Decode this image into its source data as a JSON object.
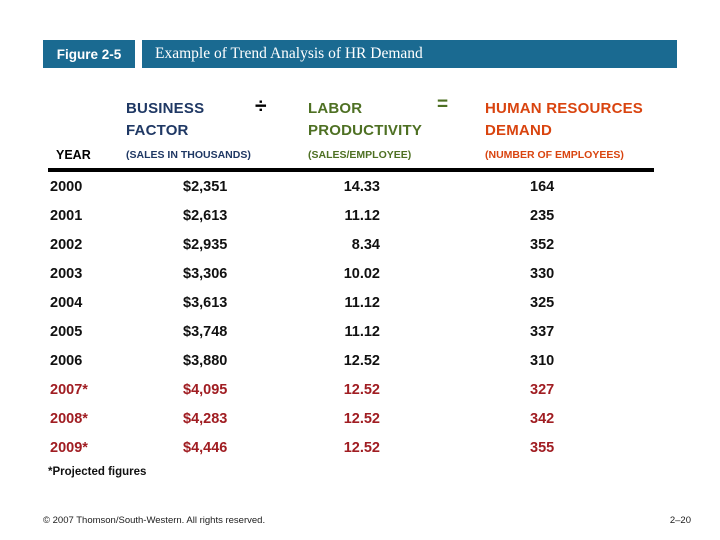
{
  "header": {
    "figure_label": "Figure 2-5",
    "title": "Example of Trend Analysis of HR Demand"
  },
  "table": {
    "year_header": "YEAR",
    "divide_symbol": "÷",
    "equals_symbol": "=",
    "business": {
      "line1": "BUSINESS",
      "line2": "FACTOR",
      "subtitle": "(SALES IN THOUSANDS)"
    },
    "productivity": {
      "line1": "LABOR",
      "line2": "PRODUCTIVITY",
      "subtitle": "(SALES/EMPLOYEE)"
    },
    "demand": {
      "line1": "HUMAN RESOURCES",
      "line2": "DEMAND",
      "subtitle": "(NUMBER OF EMPLOYEES)"
    },
    "rows": [
      {
        "year": "2000",
        "business": "$2,351",
        "productivity": "14.33",
        "demand": "164",
        "projected": false
      },
      {
        "year": "2001",
        "business": "$2,613",
        "productivity": "11.12",
        "demand": "235",
        "projected": false
      },
      {
        "year": "2002",
        "business": "$2,935",
        "productivity": "8.34",
        "demand": "352",
        "projected": false
      },
      {
        "year": "2003",
        "business": "$3,306",
        "productivity": "10.02",
        "demand": "330",
        "projected": false
      },
      {
        "year": "2004",
        "business": "$3,613",
        "productivity": "11.12",
        "demand": "325",
        "projected": false
      },
      {
        "year": "2005",
        "business": "$3,748",
        "productivity": "11.12",
        "demand": "337",
        "projected": false
      },
      {
        "year": "2006",
        "business": "$3,880",
        "productivity": "12.52",
        "demand": "310",
        "projected": false
      },
      {
        "year": "2007*",
        "business": "$4,095",
        "productivity": "12.52",
        "demand": "327",
        "projected": true
      },
      {
        "year": "2008*",
        "business": "$4,283",
        "productivity": "12.52",
        "demand": "342",
        "projected": true
      },
      {
        "year": "2009*",
        "business": "$4,446",
        "productivity": "12.52",
        "demand": "355",
        "projected": true
      }
    ]
  },
  "footnote": "*Projected figures",
  "footer": {
    "copyright": "© 2007 Thomson/South-Western. All rights reserved.",
    "page_number": "2–20"
  },
  "colors": {
    "bar_blue": "#1a6a91",
    "navy": "#1f3864",
    "olive": "#4e7023",
    "orange_red": "#d9440f",
    "projected_red": "#a01d22",
    "text_black": "#111111"
  }
}
